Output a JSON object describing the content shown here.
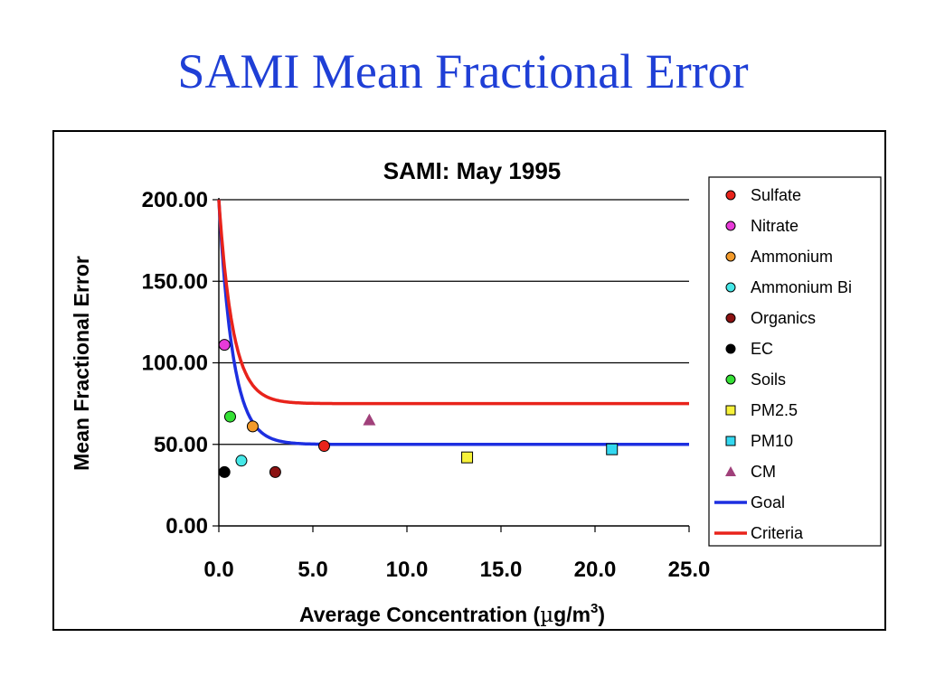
{
  "slide": {
    "title": "SAMI Mean Fractional Error"
  },
  "chart_data": {
    "type": "scatter",
    "title": "SAMI: May 1995",
    "xlabel_prefix": "Average Concentration (",
    "xlabel_mu": "µ",
    "xlabel_unit": "g/m",
    "xlabel_sup": "3",
    "xlabel_suffix": ")",
    "ylabel": "Mean Fractional Error",
    "xlim": [
      0,
      25
    ],
    "ylim": [
      0,
      200
    ],
    "x_ticks": [
      "0.0",
      "5.0",
      "10.0",
      "15.0",
      "20.0",
      "25.0"
    ],
    "y_ticks": [
      "0.00",
      "50.00",
      "100.00",
      "150.00",
      "200.00"
    ],
    "grid": "horizontal",
    "legend_position": "right",
    "series": [
      {
        "name": "Sulfate",
        "marker": "circle",
        "color": "#e8231b",
        "points": [
          [
            5.6,
            49
          ]
        ]
      },
      {
        "name": "Nitrate",
        "marker": "circle",
        "color": "#e83ad8",
        "points": [
          [
            0.3,
            111
          ]
        ]
      },
      {
        "name": "Ammonium",
        "marker": "circle",
        "color": "#f39a2a",
        "points": [
          [
            1.8,
            61
          ]
        ]
      },
      {
        "name": "Ammonium Bi",
        "marker": "circle",
        "color": "#46e8e8",
        "points": [
          [
            1.2,
            40
          ]
        ]
      },
      {
        "name": "Organics",
        "marker": "circle",
        "color": "#8b1212",
        "points": [
          [
            3.0,
            33
          ]
        ]
      },
      {
        "name": "EC",
        "marker": "circle",
        "color": "#000000",
        "points": [
          [
            0.3,
            33
          ]
        ]
      },
      {
        "name": "Soils",
        "marker": "circle",
        "color": "#35e035",
        "points": [
          [
            0.6,
            67
          ]
        ]
      },
      {
        "name": "PM2.5",
        "marker": "square",
        "color": "#f7f23a",
        "points": [
          [
            13.2,
            42
          ]
        ]
      },
      {
        "name": "PM10",
        "marker": "square",
        "color": "#33d8f0",
        "points": [
          [
            20.9,
            47
          ]
        ]
      },
      {
        "name": "CM",
        "marker": "triangle",
        "color": "#a0407a",
        "points": [
          [
            8.0,
            65
          ]
        ]
      },
      {
        "name": "Goal",
        "marker": "line",
        "color": "#1d2fe0",
        "formula": "goal"
      },
      {
        "name": "Criteria",
        "marker": "line",
        "color": "#e8231b",
        "formula": "criteria"
      }
    ]
  }
}
